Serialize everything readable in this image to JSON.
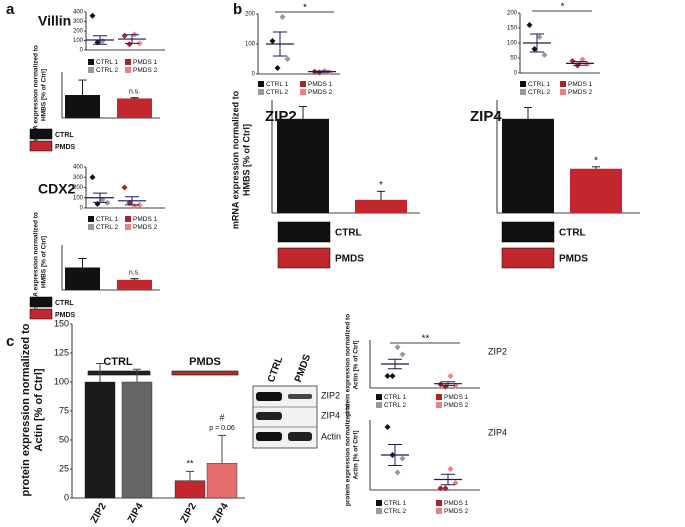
{
  "panel_labels": [
    "a",
    "b",
    "c"
  ],
  "blot": {
    "lanes": [
      "CTRL",
      "PMDS"
    ],
    "bands": [
      "ZIP2",
      "ZIP4",
      "Actin"
    ]
  },
  "chart_data": [
    {
      "type": "bar",
      "title": "Villin",
      "ylabel": [
        "mRNA expression normalized to",
        "HMBS [% of Ctrl]"
      ],
      "ylim": [
        0,
        200
      ],
      "series": [
        {
          "name": "CTRL",
          "color": "#111111",
          "values": [
            100
          ],
          "errors": [
            65
          ]
        },
        {
          "name": "PMDS",
          "color": "#c1272d",
          "values": [
            85
          ],
          "errors": [
            3
          ],
          "annotation": "n.s."
        }
      ]
    },
    {
      "type": "dot",
      "ylim": [
        0,
        400
      ],
      "yticks": [
        0,
        100,
        200,
        300,
        400
      ],
      "series": [
        {
          "name": "CTRL 1",
          "color": "#111111",
          "values": [
            360,
            80
          ]
        },
        {
          "name": "CTRL 2",
          "color": "#999999",
          "values": [
            95
          ]
        },
        {
          "name": "PMDS 1",
          "color": "#a8262b",
          "values": [
            150,
            60
          ]
        },
        {
          "name": "PMDS 2",
          "color": "#f08080",
          "values": [
            165,
            70
          ]
        }
      ],
      "groups": [
        {
          "mean": 105,
          "sem": 45
        },
        {
          "mean": 115,
          "sem": 45
        }
      ]
    },
    {
      "type": "bar",
      "title": "CDX2",
      "ylabel": [
        "mRNA expression normalized to",
        "HMBS [% of Ctrl]"
      ],
      "ylim": [
        0,
        200
      ],
      "series": [
        {
          "name": "CTRL",
          "color": "#111111",
          "values": [
            100
          ],
          "errors": [
            40
          ]
        },
        {
          "name": "PMDS",
          "color": "#c1272d",
          "values": [
            45
          ],
          "errors": [
            5
          ],
          "annotation": "n.s."
        }
      ]
    },
    {
      "type": "dot",
      "ylim": [
        0,
        400
      ],
      "yticks": [
        0,
        100,
        200,
        300,
        400
      ],
      "series": [
        {
          "name": "CTRL 1",
          "color": "#111111",
          "values": [
            300,
            40
          ]
        },
        {
          "name": "CTRL 2",
          "color": "#999999",
          "values": [
            80,
            50
          ]
        },
        {
          "name": "PMDS 1",
          "color": "#a8262b",
          "values": [
            200,
            50
          ]
        },
        {
          "name": "PMDS 2",
          "color": "#f08080",
          "values": [
            20,
            30
          ]
        }
      ],
      "groups": [
        {
          "mean": 100,
          "sem": 45
        },
        {
          "mean": 70,
          "sem": 40
        }
      ]
    },
    {
      "type": "bar",
      "title": "ZIP2",
      "ylabel": [
        "mRNA expression normalized to",
        "HMBS [% of Ctrl]"
      ],
      "ylim": [
        0,
        120
      ],
      "series": [
        {
          "name": "CTRL",
          "color": "#111111",
          "values": [
            100
          ],
          "errors": [
            13
          ]
        },
        {
          "name": "PMDS",
          "color": "#c1272d",
          "values": [
            14
          ],
          "errors": [
            9
          ],
          "annotation": "*"
        }
      ]
    },
    {
      "type": "dot",
      "ylim": [
        0,
        200
      ],
      "yticks": [
        0,
        100,
        200
      ],
      "significance": "*",
      "series": [
        {
          "name": "CTRL 1",
          "color": "#111111",
          "values": [
            110,
            20
          ]
        },
        {
          "name": "CTRL 2",
          "color": "#999999",
          "values": [
            190,
            50
          ]
        },
        {
          "name": "PMDS 1",
          "color": "#a8262b",
          "values": [
            8,
            5
          ]
        },
        {
          "name": "PMDS 2",
          "color": "#f08080",
          "values": [
            10,
            6
          ]
        }
      ],
      "groups": [
        {
          "mean": 100,
          "sem": 40
        },
        {
          "mean": 8,
          "sem": 2
        }
      ]
    },
    {
      "type": "bar",
      "title": "ZIP4",
      "ylim": [
        0,
        120
      ],
      "series": [
        {
          "name": "CTRL",
          "color": "#111111",
          "values": [
            100
          ],
          "errors": [
            12
          ]
        },
        {
          "name": "PMDS",
          "color": "#c1272d",
          "values": [
            47
          ],
          "errors": [
            2
          ],
          "annotation": "*"
        }
      ]
    },
    {
      "type": "dot",
      "ylim": [
        0,
        200
      ],
      "yticks": [
        0,
        50,
        100,
        150,
        200
      ],
      "significance": "*",
      "series": [
        {
          "name": "CTRL 1",
          "color": "#111111",
          "values": [
            160,
            80
          ]
        },
        {
          "name": "CTRL 2",
          "color": "#999999",
          "values": [
            120,
            60
          ]
        },
        {
          "name": "PMDS 1",
          "color": "#a8262b",
          "values": [
            40,
            25
          ]
        },
        {
          "name": "PMDS 2",
          "color": "#f08080",
          "values": [
            45,
            30
          ]
        }
      ],
      "groups": [
        {
          "mean": 100,
          "sem": 30
        },
        {
          "mean": 32,
          "sem": 6
        }
      ]
    },
    {
      "type": "grouped_bar",
      "ylabel": [
        "protein expression normalized to",
        "Actin [% of Ctrl]"
      ],
      "ylim": [
        0,
        150
      ],
      "yticks": [
        0,
        25,
        50,
        75,
        100,
        125,
        150
      ],
      "groups": [
        {
          "name": "CTRL",
          "color": "#222222",
          "categories": [
            "ZIP2",
            "ZIP4"
          ],
          "colors": [
            "#1a1a1a",
            "#666666"
          ],
          "values": [
            100,
            100
          ],
          "errors": [
            16,
            11
          ]
        },
        {
          "name": "PMDS",
          "color": "#b03030",
          "categories": [
            "ZIP2",
            "ZIP4"
          ],
          "colors": [
            "#c1272d",
            "#e36c6c"
          ],
          "values": [
            15,
            30
          ],
          "errors": [
            8,
            24
          ],
          "annotations": [
            [
              "**"
            ],
            [
              "#",
              "p = 0.06"
            ]
          ]
        }
      ]
    },
    {
      "type": "dot",
      "title": "ZIP2",
      "ylabel": [
        "protein expression normalized to",
        "Actin [% of Ctrl]"
      ],
      "ylim": [
        0,
        200
      ],
      "significance": "**",
      "series": [
        {
          "name": "CTRL 1",
          "color": "#111111",
          "values": [
            50,
            50
          ]
        },
        {
          "name": "CTRL 2",
          "color": "#999999",
          "values": [
            170,
            140
          ]
        },
        {
          "name": "PMDS 1",
          "color": "#a8262b",
          "values": [
            15,
            5
          ]
        },
        {
          "name": "PMDS 2",
          "color": "#f08080",
          "values": [
            50,
            10
          ]
        }
      ],
      "groups": [
        {
          "mean": 100,
          "sem": 20
        },
        {
          "mean": 18,
          "sem": 8
        }
      ]
    },
    {
      "type": "dot",
      "title": "ZIP4",
      "ylabel": [
        "protein expression normalized to",
        "Actin [% of Ctrl]"
      ],
      "ylim": [
        0,
        200
      ],
      "series": [
        {
          "name": "CTRL 1",
          "color": "#111111",
          "values": [
            180,
            100
          ]
        },
        {
          "name": "CTRL 2",
          "color": "#999999",
          "values": [
            50,
            90
          ]
        },
        {
          "name": "PMDS 1",
          "color": "#a8262b",
          "values": [
            5,
            5
          ]
        },
        {
          "name": "PMDS 2",
          "color": "#f08080",
          "values": [
            60,
            20
          ]
        }
      ],
      "groups": [
        {
          "mean": 100,
          "sem": 30
        },
        {
          "mean": 30,
          "sem": 15
        }
      ]
    }
  ]
}
